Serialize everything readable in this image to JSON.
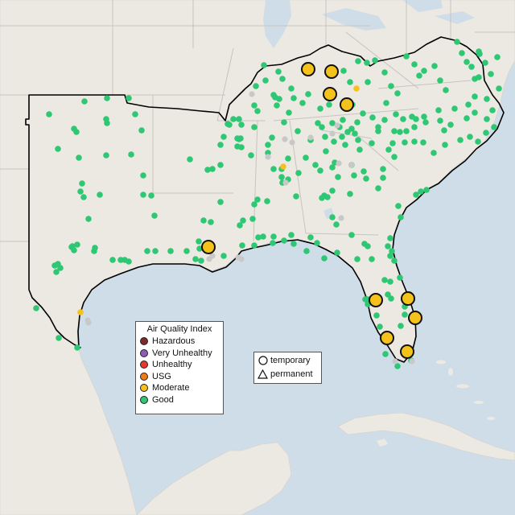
{
  "legend": {
    "title": "Air Quality Index",
    "categories": [
      {
        "label": "Hazardous",
        "color": "#7e2a2a"
      },
      {
        "label": "Very Unhealthy",
        "color": "#8f5bb5"
      },
      {
        "label": "Unhealthy",
        "color": "#e8382c"
      },
      {
        "label": "USG",
        "color": "#ee7b17"
      },
      {
        "label": "Moderate",
        "color": "#f5c21b"
      },
      {
        "label": "Good",
        "color": "#2ec774"
      }
    ]
  },
  "monitor_types": {
    "temporary": {
      "label": "temporary",
      "icon": "circle-icon"
    },
    "permanent": {
      "label": "permanent",
      "icon": "triangle-icon"
    }
  },
  "map_colors": {
    "ocean": "#cfdde8",
    "land": "#ece9e3",
    "border": "#c4c0bb",
    "region_outline": "#000000",
    "no_data": "#c8c8c8"
  }
}
